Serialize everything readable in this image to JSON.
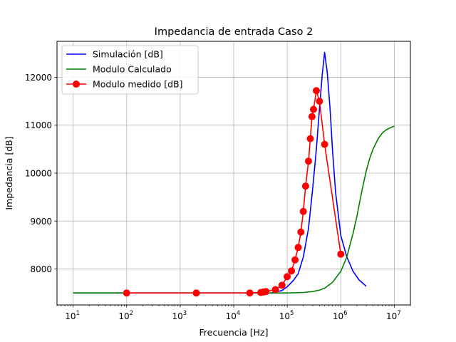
{
  "chart_data": {
    "type": "line",
    "title": "Impedancia de entrada Caso 2",
    "xlabel": "Frecuencia [Hz]",
    "ylabel": "Impedancia [dB]",
    "xscale": "log",
    "xlim": [
      5,
      20000000
    ],
    "ylim": [
      7250,
      12750
    ],
    "grid": true,
    "legend_position": "top-left",
    "x_ticks": [
      {
        "value": 10,
        "base": "10",
        "exp": "1"
      },
      {
        "value": 100,
        "base": "10",
        "exp": "2"
      },
      {
        "value": 1000,
        "base": "10",
        "exp": "3"
      },
      {
        "value": 10000,
        "base": "10",
        "exp": "4"
      },
      {
        "value": 100000,
        "base": "10",
        "exp": "5"
      },
      {
        "value": 1000000,
        "base": "10",
        "exp": "6"
      },
      {
        "value": 10000000,
        "base": "10",
        "exp": "7"
      }
    ],
    "y_ticks": [
      {
        "value": 8000,
        "label": "8000"
      },
      {
        "value": 9000,
        "label": "9000"
      },
      {
        "value": 10000,
        "label": "10000"
      },
      {
        "value": 11000,
        "label": "11000"
      },
      {
        "value": 12000,
        "label": "12000"
      }
    ],
    "series": [
      {
        "name": "Simulación [dB]",
        "color": "#0000ff",
        "marker": "none",
        "x": [
          10,
          1000,
          10000,
          50000,
          80000,
          100000,
          130000,
          160000,
          200000,
          250000,
          300000,
          350000,
          400000,
          450000,
          500000,
          560000,
          630000,
          700000,
          800000,
          1000000,
          1300000,
          1700000,
          2200000,
          3000000
        ],
        "y": [
          7500,
          7500,
          7500,
          7500,
          7550,
          7630,
          7760,
          7900,
          8250,
          8850,
          9700,
          10500,
          11350,
          12050,
          12520,
          12100,
          11350,
          10500,
          9600,
          8700,
          8250,
          7950,
          7770,
          7640
        ]
      },
      {
        "name": "Modulo Calculado",
        "color": "#008000",
        "marker": "none",
        "x": [
          10,
          100000,
          200000,
          300000,
          400000,
          500000,
          700000,
          1000000,
          1300000,
          1700000,
          2000000,
          2500000,
          3000000,
          3500000,
          4000000,
          5000000,
          6000000,
          7000000,
          8500000,
          10000000
        ],
        "y": [
          7500,
          7500,
          7510,
          7530,
          7560,
          7600,
          7720,
          7950,
          8250,
          8750,
          9100,
          9650,
          10050,
          10320,
          10500,
          10720,
          10840,
          10900,
          10950,
          10980
        ]
      },
      {
        "name": "Modulo medido [dB]",
        "color": "#ff0000",
        "marker": "circle",
        "x": [
          100,
          2000,
          20000,
          32000,
          36000,
          40000,
          60000,
          80000,
          100000,
          120000,
          140000,
          160000,
          180000,
          200000,
          220000,
          250000,
          270000,
          290000,
          310000,
          350000,
          400000,
          500000,
          1000000
        ],
        "y": [
          7500,
          7500,
          7500,
          7510,
          7520,
          7530,
          7570,
          7660,
          7840,
          7960,
          8190,
          8450,
          8770,
          9200,
          9730,
          10250,
          10720,
          11180,
          11330,
          11720,
          11500,
          10600,
          8310
        ]
      }
    ]
  }
}
